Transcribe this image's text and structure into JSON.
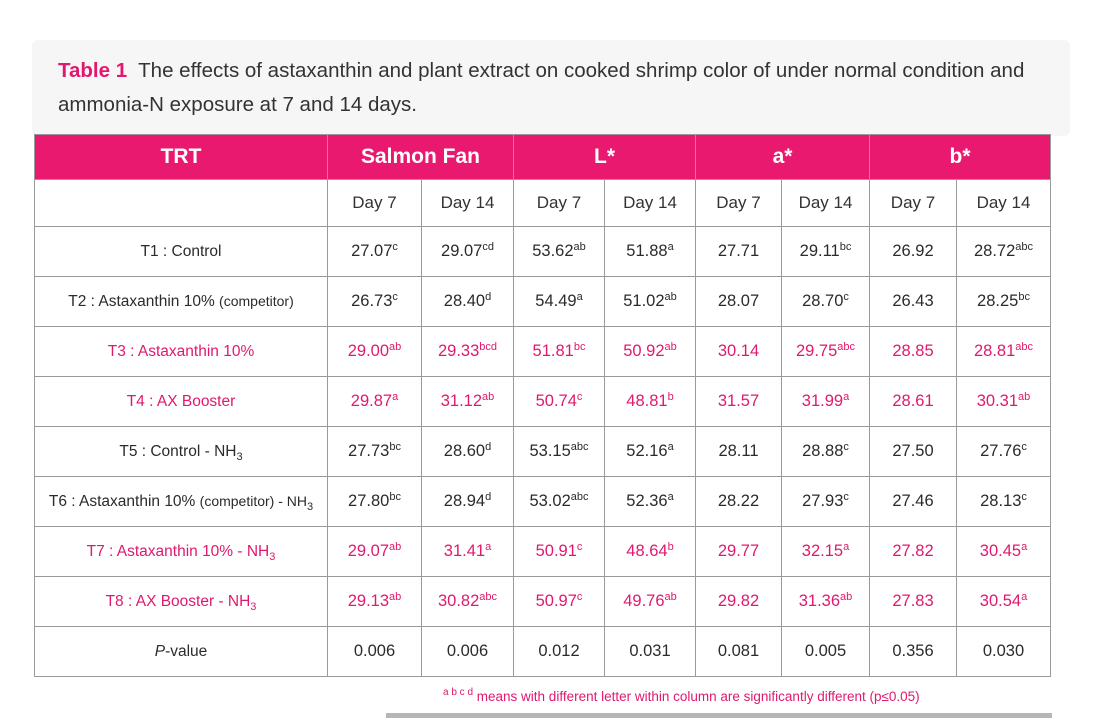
{
  "caption": {
    "label": "Table 1",
    "text": "The effects of astaxanthin and plant extract on cooked shrimp color of under normal condition and ammonia-N exposure at 7 and 14 days."
  },
  "headers": {
    "trt": "TRT",
    "groups": [
      "Salmon Fan",
      "L*",
      "a*",
      "b*"
    ],
    "days": [
      "Day 7",
      "Day 14",
      "Day 7",
      "Day 14",
      "Day 7",
      "Day 14",
      "Day 7",
      "Day 14"
    ]
  },
  "rows": [
    {
      "label": "T1 : Control",
      "note": "",
      "sub": "",
      "pink": false,
      "cells": [
        [
          "27.07",
          "c"
        ],
        [
          "29.07",
          "cd"
        ],
        [
          "53.62",
          "ab"
        ],
        [
          "51.88",
          "a"
        ],
        [
          "27.71",
          ""
        ],
        [
          "29.11",
          "bc"
        ],
        [
          "26.92",
          ""
        ],
        [
          "28.72",
          "abc"
        ]
      ]
    },
    {
      "label": "T2 : Astaxanthin 10% ",
      "note": "(competitor)",
      "sub": "",
      "pink": false,
      "cells": [
        [
          "26.73",
          "c"
        ],
        [
          "28.40",
          "d"
        ],
        [
          "54.49",
          "a"
        ],
        [
          "51.02",
          "ab"
        ],
        [
          "28.07",
          ""
        ],
        [
          "28.70",
          "c"
        ],
        [
          "26.43",
          ""
        ],
        [
          "28.25",
          "bc"
        ]
      ]
    },
    {
      "label": "T3 : Astaxanthin 10%",
      "note": "",
      "sub": "",
      "pink": true,
      "cells": [
        [
          "29.00",
          "ab"
        ],
        [
          "29.33",
          "bcd"
        ],
        [
          "51.81",
          "bc"
        ],
        [
          "50.92",
          "ab"
        ],
        [
          "30.14",
          ""
        ],
        [
          "29.75",
          "abc"
        ],
        [
          "28.85",
          ""
        ],
        [
          "28.81",
          "abc"
        ]
      ]
    },
    {
      "label": "T4 : AX Booster",
      "note": "",
      "sub": "",
      "pink": true,
      "cells": [
        [
          "29.87",
          "a"
        ],
        [
          "31.12",
          "ab"
        ],
        [
          "50.74",
          "c"
        ],
        [
          "48.81",
          "b"
        ],
        [
          "31.57",
          ""
        ],
        [
          "31.99",
          "a"
        ],
        [
          "28.61",
          ""
        ],
        [
          "30.31",
          "ab"
        ]
      ]
    },
    {
      "label": "T5 : Control - NH",
      "note": "",
      "sub": "3",
      "pink": false,
      "cells": [
        [
          "27.73",
          "bc"
        ],
        [
          "28.60",
          "d"
        ],
        [
          "53.15",
          "abc"
        ],
        [
          "52.16",
          "a"
        ],
        [
          "28.11",
          ""
        ],
        [
          "28.88",
          "c"
        ],
        [
          "27.50",
          ""
        ],
        [
          "27.76",
          "c"
        ]
      ]
    },
    {
      "label": "T6 : Astaxanthin 10% ",
      "note": "(competitor) - NH",
      "sub": "3",
      "pink": false,
      "cells": [
        [
          "27.80",
          "bc"
        ],
        [
          "28.94",
          "d"
        ],
        [
          "53.02",
          "abc"
        ],
        [
          "52.36",
          "a"
        ],
        [
          "28.22",
          ""
        ],
        [
          "27.93",
          "c"
        ],
        [
          "27.46",
          ""
        ],
        [
          "28.13",
          "c"
        ]
      ]
    },
    {
      "label": "T7 : Astaxanthin 10% - NH",
      "note": "",
      "sub": "3",
      "pink": true,
      "cells": [
        [
          "29.07",
          "ab"
        ],
        [
          "31.41",
          "a"
        ],
        [
          "50.91",
          "c"
        ],
        [
          "48.64",
          "b"
        ],
        [
          "29.77",
          ""
        ],
        [
          "32.15",
          "a"
        ],
        [
          "27.82",
          ""
        ],
        [
          "30.45",
          "a"
        ]
      ]
    },
    {
      "label": "T8 : AX Booster - NH",
      "note": "",
      "sub": "3",
      "pink": true,
      "cells": [
        [
          "29.13",
          "ab"
        ],
        [
          "30.82",
          "abc"
        ],
        [
          "50.97",
          "c"
        ],
        [
          "49.76",
          "ab"
        ],
        [
          "29.82",
          ""
        ],
        [
          "31.36",
          "ab"
        ],
        [
          "27.83",
          ""
        ],
        [
          "30.54",
          "a"
        ]
      ]
    }
  ],
  "pvalue": {
    "label_italic": "P",
    "label_rest": "-value",
    "values": [
      "0.006",
      "0.006",
      "0.012",
      "0.031",
      "0.081",
      "0.005",
      "0.356",
      "0.030"
    ]
  },
  "footnote": {
    "sup": "a b c d",
    "text": " means with different letter within column are significantly different (p≤0.05)"
  },
  "colors": {
    "accent": "#e8196f",
    "accent_text": "#e0196e",
    "caption_bg": "#f6f6f6",
    "rule": "#b6b6b6"
  }
}
